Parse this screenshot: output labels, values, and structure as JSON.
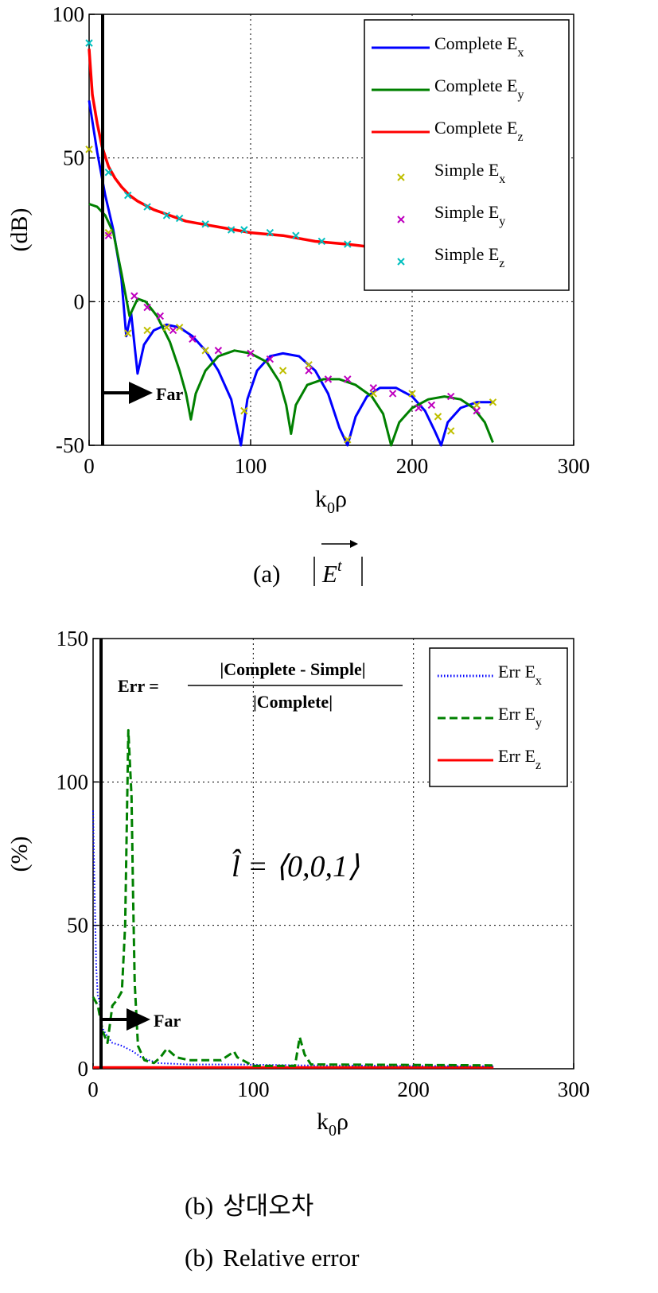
{
  "chart_data": [
    {
      "type": "line",
      "caption_prefix": "(a)",
      "caption_math": "E",
      "caption_sup": "t",
      "xlabel": "k",
      "xlabel_sub": "0",
      "xlabel_tail": "ρ",
      "ylabel": "(dB)",
      "xlim": [
        0,
        300
      ],
      "ylim": [
        -50,
        100
      ],
      "xticks": [
        "0",
        "100",
        "200",
        "300"
      ],
      "yticks": [
        "-50",
        "0",
        "50",
        "100"
      ],
      "grid": true,
      "legend_position": "top-right",
      "colors": {
        "ex": "#0000ff",
        "ey": "#008000",
        "ez": "#ff0000",
        "sx": "#bfbf00",
        "sy": "#bf00bf",
        "sz": "#00bfbf"
      },
      "series": [
        {
          "name": "Complete E",
          "sub": "x",
          "style": "line"
        },
        {
          "name": "Complete E",
          "sub": "y",
          "style": "line"
        },
        {
          "name": "Complete E",
          "sub": "z",
          "style": "line"
        },
        {
          "name": "Simple E",
          "sub": "x",
          "style": "marker"
        },
        {
          "name": "Simple E",
          "sub": "y",
          "style": "marker"
        },
        {
          "name": "Simple E",
          "sub": "z",
          "style": "marker"
        }
      ],
      "complete_ex": [
        [
          0,
          70
        ],
        [
          5,
          52
        ],
        [
          10,
          37
        ],
        [
          15,
          25
        ],
        [
          20,
          8
        ],
        [
          23,
          -12
        ],
        [
          26,
          -4
        ],
        [
          30,
          -25
        ],
        [
          34,
          -15
        ],
        [
          40,
          -10
        ],
        [
          48,
          -8
        ],
        [
          56,
          -9
        ],
        [
          64,
          -12
        ],
        [
          72,
          -17
        ],
        [
          80,
          -24
        ],
        [
          88,
          -34
        ],
        [
          94,
          -50
        ],
        [
          98,
          -34
        ],
        [
          104,
          -24
        ],
        [
          112,
          -19
        ],
        [
          120,
          -18
        ],
        [
          130,
          -19
        ],
        [
          140,
          -24
        ],
        [
          148,
          -32
        ],
        [
          155,
          -44
        ],
        [
          160,
          -50
        ],
        [
          165,
          -40
        ],
        [
          172,
          -33
        ],
        [
          180,
          -30
        ],
        [
          190,
          -30
        ],
        [
          200,
          -33
        ],
        [
          208,
          -38
        ],
        [
          214,
          -45
        ],
        [
          218,
          -50
        ],
        [
          222,
          -42
        ],
        [
          230,
          -37
        ],
        [
          240,
          -35
        ],
        [
          250,
          -35
        ]
      ],
      "complete_ey": [
        [
          0,
          34
        ],
        [
          5,
          33
        ],
        [
          10,
          30
        ],
        [
          15,
          24
        ],
        [
          20,
          10
        ],
        [
          25,
          -5
        ],
        [
          30,
          1
        ],
        [
          35,
          0
        ],
        [
          42,
          -5
        ],
        [
          50,
          -14
        ],
        [
          56,
          -24
        ],
        [
          60,
          -32
        ],
        [
          63,
          -41
        ],
        [
          66,
          -32
        ],
        [
          72,
          -24
        ],
        [
          80,
          -19
        ],
        [
          90,
          -17
        ],
        [
          100,
          -18
        ],
        [
          110,
          -21
        ],
        [
          118,
          -28
        ],
        [
          122,
          -36
        ],
        [
          125,
          -46
        ],
        [
          128,
          -36
        ],
        [
          135,
          -29
        ],
        [
          145,
          -27
        ],
        [
          155,
          -27
        ],
        [
          165,
          -29
        ],
        [
          175,
          -33
        ],
        [
          182,
          -39
        ],
        [
          187,
          -50
        ],
        [
          192,
          -42
        ],
        [
          200,
          -37
        ],
        [
          210,
          -34
        ],
        [
          220,
          -33
        ],
        [
          230,
          -34
        ],
        [
          238,
          -37
        ],
        [
          245,
          -42
        ],
        [
          250,
          -49
        ]
      ],
      "complete_ez": [
        [
          0,
          88
        ],
        [
          2,
          72
        ],
        [
          5,
          62
        ],
        [
          8,
          54
        ],
        [
          12,
          47
        ],
        [
          16,
          43
        ],
        [
          20,
          40
        ],
        [
          25,
          37
        ],
        [
          30,
          35
        ],
        [
          40,
          32
        ],
        [
          50,
          30
        ],
        [
          60,
          28
        ],
        [
          70,
          27
        ],
        [
          80,
          26
        ],
        [
          90,
          25
        ],
        [
          100,
          24
        ],
        [
          120,
          23
        ],
        [
          140,
          21
        ],
        [
          160,
          20
        ],
        [
          175,
          19
        ],
        [
          180,
          19
        ]
      ],
      "simple_ex": [
        [
          0,
          53
        ],
        [
          12,
          24
        ],
        [
          24,
          -11
        ],
        [
          36,
          -10
        ],
        [
          48,
          -9
        ],
        [
          56,
          -9
        ],
        [
          72,
          -17
        ],
        [
          96,
          -38
        ],
        [
          120,
          -24
        ],
        [
          136,
          -22
        ],
        [
          160,
          -48
        ],
        [
          176,
          -32
        ],
        [
          200,
          -32
        ],
        [
          216,
          -40
        ],
        [
          224,
          -45
        ],
        [
          240,
          -36
        ],
        [
          250,
          -35
        ]
      ],
      "simple_ey": [
        [
          12,
          23
        ],
        [
          28,
          2
        ],
        [
          36,
          -2
        ],
        [
          44,
          -5
        ],
        [
          52,
          -10
        ],
        [
          64,
          -13
        ],
        [
          80,
          -17
        ],
        [
          100,
          -18
        ],
        [
          112,
          -20
        ],
        [
          136,
          -24
        ],
        [
          148,
          -27
        ],
        [
          160,
          -27
        ],
        [
          176,
          -30
        ],
        [
          188,
          -32
        ],
        [
          204,
          -37
        ],
        [
          212,
          -36
        ],
        [
          224,
          -33
        ],
        [
          240,
          -38
        ]
      ],
      "simple_ez": [
        [
          0,
          90
        ],
        [
          12,
          45
        ],
        [
          24,
          37
        ],
        [
          36,
          33
        ],
        [
          48,
          30
        ],
        [
          56,
          29
        ],
        [
          72,
          27
        ],
        [
          88,
          25
        ],
        [
          96,
          25
        ],
        [
          112,
          24
        ],
        [
          128,
          23
        ],
        [
          144,
          21
        ],
        [
          160,
          20
        ]
      ]
    },
    {
      "type": "line",
      "caption_prefix": "(b)",
      "caption_ko": "상대오차",
      "caption_en": "Relative  error",
      "xlabel": "k",
      "xlabel_sub": "0",
      "xlabel_tail": "ρ",
      "ylabel": "(%)",
      "xlim": [
        0,
        300
      ],
      "ylim": [
        0,
        150
      ],
      "xticks": [
        "0",
        "100",
        "200",
        "300"
      ],
      "yticks": [
        "0",
        "50",
        "100",
        "150"
      ],
      "grid": true,
      "legend_position": "top-right",
      "colors": {
        "ex": "#0000ff",
        "ey": "#008000",
        "ez": "#ff0000"
      },
      "series": [
        {
          "name": "Err E",
          "sub": "x",
          "style": "dotted"
        },
        {
          "name": "Err E",
          "sub": "y",
          "style": "dashed"
        },
        {
          "name": "Err E",
          "sub": "z",
          "style": "line"
        }
      ],
      "err_ex": [
        [
          0,
          90
        ],
        [
          1,
          60
        ],
        [
          2,
          35
        ],
        [
          3,
          25
        ],
        [
          4,
          24
        ],
        [
          5,
          15
        ],
        [
          8,
          12
        ],
        [
          12,
          9
        ],
        [
          18,
          8
        ],
        [
          25,
          6
        ],
        [
          30,
          4
        ],
        [
          40,
          2
        ],
        [
          60,
          1.5
        ],
        [
          90,
          1.5
        ],
        [
          130,
          1.2
        ],
        [
          250,
          0.9
        ]
      ],
      "err_ey": [
        [
          0,
          25
        ],
        [
          3,
          22
        ],
        [
          6,
          13
        ],
        [
          9,
          9
        ],
        [
          12,
          22
        ],
        [
          15,
          24
        ],
        [
          18,
          27
        ],
        [
          20,
          50
        ],
        [
          22,
          118
        ],
        [
          24,
          95
        ],
        [
          25,
          60
        ],
        [
          26,
          30
        ],
        [
          28,
          8
        ],
        [
          32,
          3
        ],
        [
          38,
          2
        ],
        [
          42,
          4
        ],
        [
          46,
          7
        ],
        [
          52,
          4
        ],
        [
          60,
          3
        ],
        [
          80,
          3
        ],
        [
          88,
          6
        ],
        [
          90,
          4
        ],
        [
          100,
          1
        ],
        [
          126,
          1
        ],
        [
          129,
          11
        ],
        [
          132,
          5
        ],
        [
          136,
          1.5
        ],
        [
          250,
          1.2
        ]
      ],
      "err_ez": [
        [
          0,
          0.5
        ],
        [
          250,
          0.5
        ]
      ],
      "formula_lhs": "Err =",
      "formula_num": "|Complete - Simple|",
      "formula_den": "|Complete|",
      "annotation_lhat": "l̂ = ⟨0,0,1⟩"
    }
  ],
  "arrow_label": "Far"
}
